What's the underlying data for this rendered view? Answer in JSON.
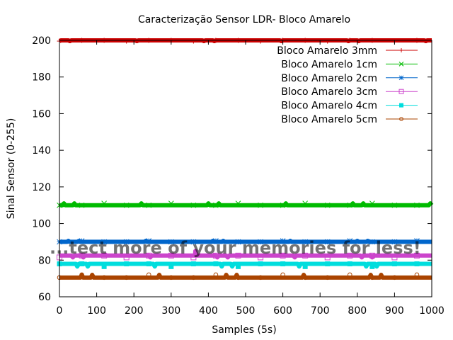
{
  "chart_data": {
    "type": "line",
    "title": "Caracterização Sensor LDR- Bloco Amarelo",
    "xlabel": "Samples (5s)",
    "ylabel": "Sinal Sensor (0-255)",
    "xlim": [
      0,
      1000
    ],
    "ylim": [
      60,
      200
    ],
    "xticks": [
      "0",
      "100",
      "200",
      "300",
      "400",
      "500",
      "600",
      "700",
      "800",
      "900",
      "1000"
    ],
    "yticks": [
      "60",
      "80",
      "100",
      "120",
      "140",
      "160",
      "180",
      "200"
    ],
    "grid": false,
    "legend_position": "top-right",
    "series": [
      {
        "name": "Bloco Amarelo 3mm",
        "color": "#cc0000",
        "marker": "plus",
        "base": 200,
        "alt": [
          199.6
        ],
        "spikes": []
      },
      {
        "name": "Bloco Amarelo 1cm",
        "color": "#00bb00",
        "marker": "x",
        "base": 110,
        "alt": [
          111
        ],
        "spikes": []
      },
      {
        "name": "Bloco Amarelo 2cm",
        "color": "#0066cc",
        "marker": "asterisk",
        "base": 90,
        "alt": [
          90.5
        ],
        "spikes": []
      },
      {
        "name": "Bloco Amarelo 3cm",
        "color": "#cc44cc",
        "marker": "square",
        "base": 82.5,
        "alt": [
          81.5
        ],
        "spikes": [
          [
            365,
            85
          ]
        ]
      },
      {
        "name": "Bloco Amarelo 4cm",
        "color": "#00dddd",
        "marker": "filled-square",
        "base": 78,
        "alt": [
          76.5
        ],
        "spikes": []
      },
      {
        "name": "Bloco Amarelo 5cm",
        "color": "#aa4400",
        "marker": "circle",
        "base": 70.5,
        "alt": [
          72
        ],
        "spikes": []
      }
    ],
    "overlay_text": "...tect more of your memories for less!"
  }
}
